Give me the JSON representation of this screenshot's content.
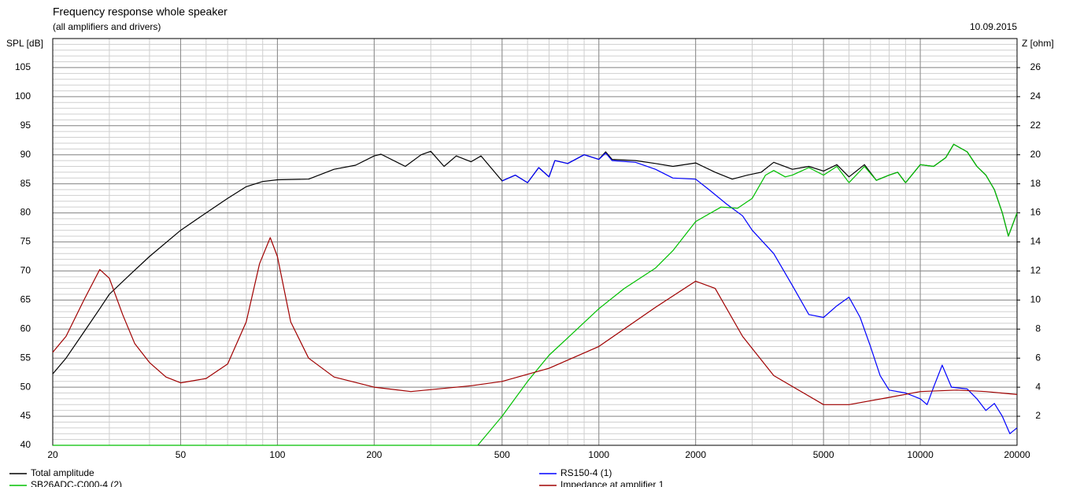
{
  "chart_data": {
    "type": "line",
    "title": "Frequency response whole speaker",
    "subtitle": "(all amplifiers and drivers)",
    "date": "10.09.2015",
    "y_label": "SPL [dB]",
    "y2_label": "Z [ohm]",
    "xscale": "log",
    "grid": true,
    "minor_grid": true,
    "xlim": [
      20,
      20000
    ],
    "xticks": [
      20,
      50,
      100,
      200,
      500,
      1000,
      2000,
      5000,
      10000,
      20000
    ],
    "ylim": [
      40,
      110
    ],
    "yticks": [
      40,
      45,
      50,
      55,
      60,
      65,
      70,
      75,
      80,
      85,
      90,
      95,
      100,
      105
    ],
    "y2lim": [
      0,
      28
    ],
    "y2ticks": [
      2,
      4,
      6,
      8,
      10,
      12,
      14,
      16,
      18,
      20,
      22,
      24,
      26
    ],
    "legend": "bottom",
    "series": [
      {
        "name": "Total amplitude",
        "color": "#000000",
        "x": [
          20,
          22,
          25,
          28,
          30,
          35,
          40,
          50,
          60,
          70,
          80,
          90,
          100,
          125,
          150,
          175,
          200,
          210,
          250,
          280,
          300,
          330,
          360,
          400,
          430,
          500,
          550,
          600,
          650,
          700,
          730,
          800,
          900,
          1000,
          1050,
          1100,
          1300,
          1500,
          1700,
          2000,
          2300,
          2600,
          2900,
          3200,
          3500,
          4000,
          4500,
          5000,
          5500,
          6000,
          6700,
          7300,
          8000,
          8500,
          9000,
          10000,
          11000,
          12000,
          12700,
          14000,
          15000,
          16000,
          17000,
          18000,
          18800,
          20000
        ],
        "values": [
          52.3,
          55,
          59.5,
          63.5,
          66,
          69.5,
          72.5,
          77,
          80,
          82.5,
          84.5,
          85.4,
          85.7,
          85.8,
          87.5,
          88.2,
          89.8,
          90.1,
          88,
          90,
          90.6,
          88,
          89.8,
          88.8,
          89.8,
          85.5,
          86.5,
          85.2,
          87.8,
          86.2,
          89,
          88.5,
          90,
          89.2,
          90.5,
          89.2,
          89,
          88.5,
          88,
          88.6,
          87,
          85.8,
          86.5,
          87,
          88.7,
          87.5,
          88,
          87.2,
          88.3,
          86.2,
          88.3,
          85.6,
          86.5,
          87,
          85.2,
          88.3,
          88,
          89.5,
          91.8,
          90.5,
          88,
          86.5,
          84,
          80,
          76,
          80
        ]
      },
      {
        "name": "RS150-4 (1)",
        "color": "#0000ff",
        "x": [
          500,
          550,
          600,
          650,
          700,
          730,
          800,
          900,
          1000,
          1050,
          1100,
          1300,
          1500,
          1700,
          2000,
          2200,
          2500,
          2800,
          3000,
          3500,
          4000,
          4500,
          5000,
          5500,
          6000,
          6500,
          7000,
          7500,
          8000,
          9000,
          10000,
          10500,
          11000,
          11700,
          12500,
          14000,
          15000,
          16000,
          17000,
          18000,
          19000,
          20000
        ],
        "values": [
          85.5,
          86.5,
          85.2,
          87.8,
          86.2,
          89,
          88.5,
          90,
          89.2,
          90.3,
          89,
          88.7,
          87.5,
          86,
          85.8,
          84,
          81.5,
          79.5,
          77,
          73,
          67.5,
          62.5,
          62,
          64,
          65.5,
          62,
          57,
          52,
          49.5,
          49,
          48,
          47,
          50,
          53.8,
          50,
          49.7,
          48,
          46,
          47.2,
          45,
          42,
          43
        ]
      },
      {
        "name": "SB26ADC-C000-4 (2)",
        "color": "#00c000",
        "x": [
          20,
          420,
          500,
          600,
          700,
          800,
          1000,
          1200,
          1500,
          1700,
          2000,
          2400,
          2700,
          3000,
          3300,
          3500,
          3800,
          4000,
          4500,
          5000,
          5500,
          6000,
          6700,
          7300,
          8000,
          8500,
          9000,
          10000,
          11000,
          12000,
          12700,
          14000,
          15000,
          16000,
          17000,
          18000,
          18800,
          20000
        ],
        "values": [
          40,
          40,
          45,
          51,
          55.5,
          58.5,
          63.5,
          67,
          70.5,
          73.5,
          78.5,
          81,
          80.8,
          82.5,
          86.5,
          87.3,
          86.2,
          86.5,
          87.8,
          86.5,
          88,
          85.2,
          88,
          85.6,
          86.5,
          87,
          85.2,
          88.3,
          88,
          89.5,
          91.8,
          90.5,
          88,
          86.5,
          84,
          80,
          76,
          80
        ]
      },
      {
        "name": "Impedance at amplifier 1",
        "color": "#a00000",
        "axis": "y2",
        "x": [
          20,
          22,
          25,
          28,
          30,
          33,
          36,
          40,
          45,
          50,
          60,
          70,
          80,
          88,
          95,
          100,
          110,
          125,
          150,
          200,
          260,
          400,
          500,
          700,
          1000,
          1500,
          2000,
          2300,
          2800,
          3500,
          5000,
          6000,
          8000,
          10000,
          13000,
          16000,
          20000
        ],
        "values": [
          6.4,
          7.5,
          10,
          12.1,
          11.5,
          9,
          7,
          5.7,
          4.7,
          4.3,
          4.6,
          5.6,
          8.5,
          12.5,
          14.3,
          13,
          8.5,
          6,
          4.7,
          4.0,
          3.7,
          4.1,
          4.4,
          5.3,
          6.8,
          9.5,
          11.3,
          10.8,
          7.5,
          4.8,
          2.8,
          2.8,
          3.3,
          3.7,
          3.8,
          3.7,
          3.5
        ]
      }
    ]
  }
}
